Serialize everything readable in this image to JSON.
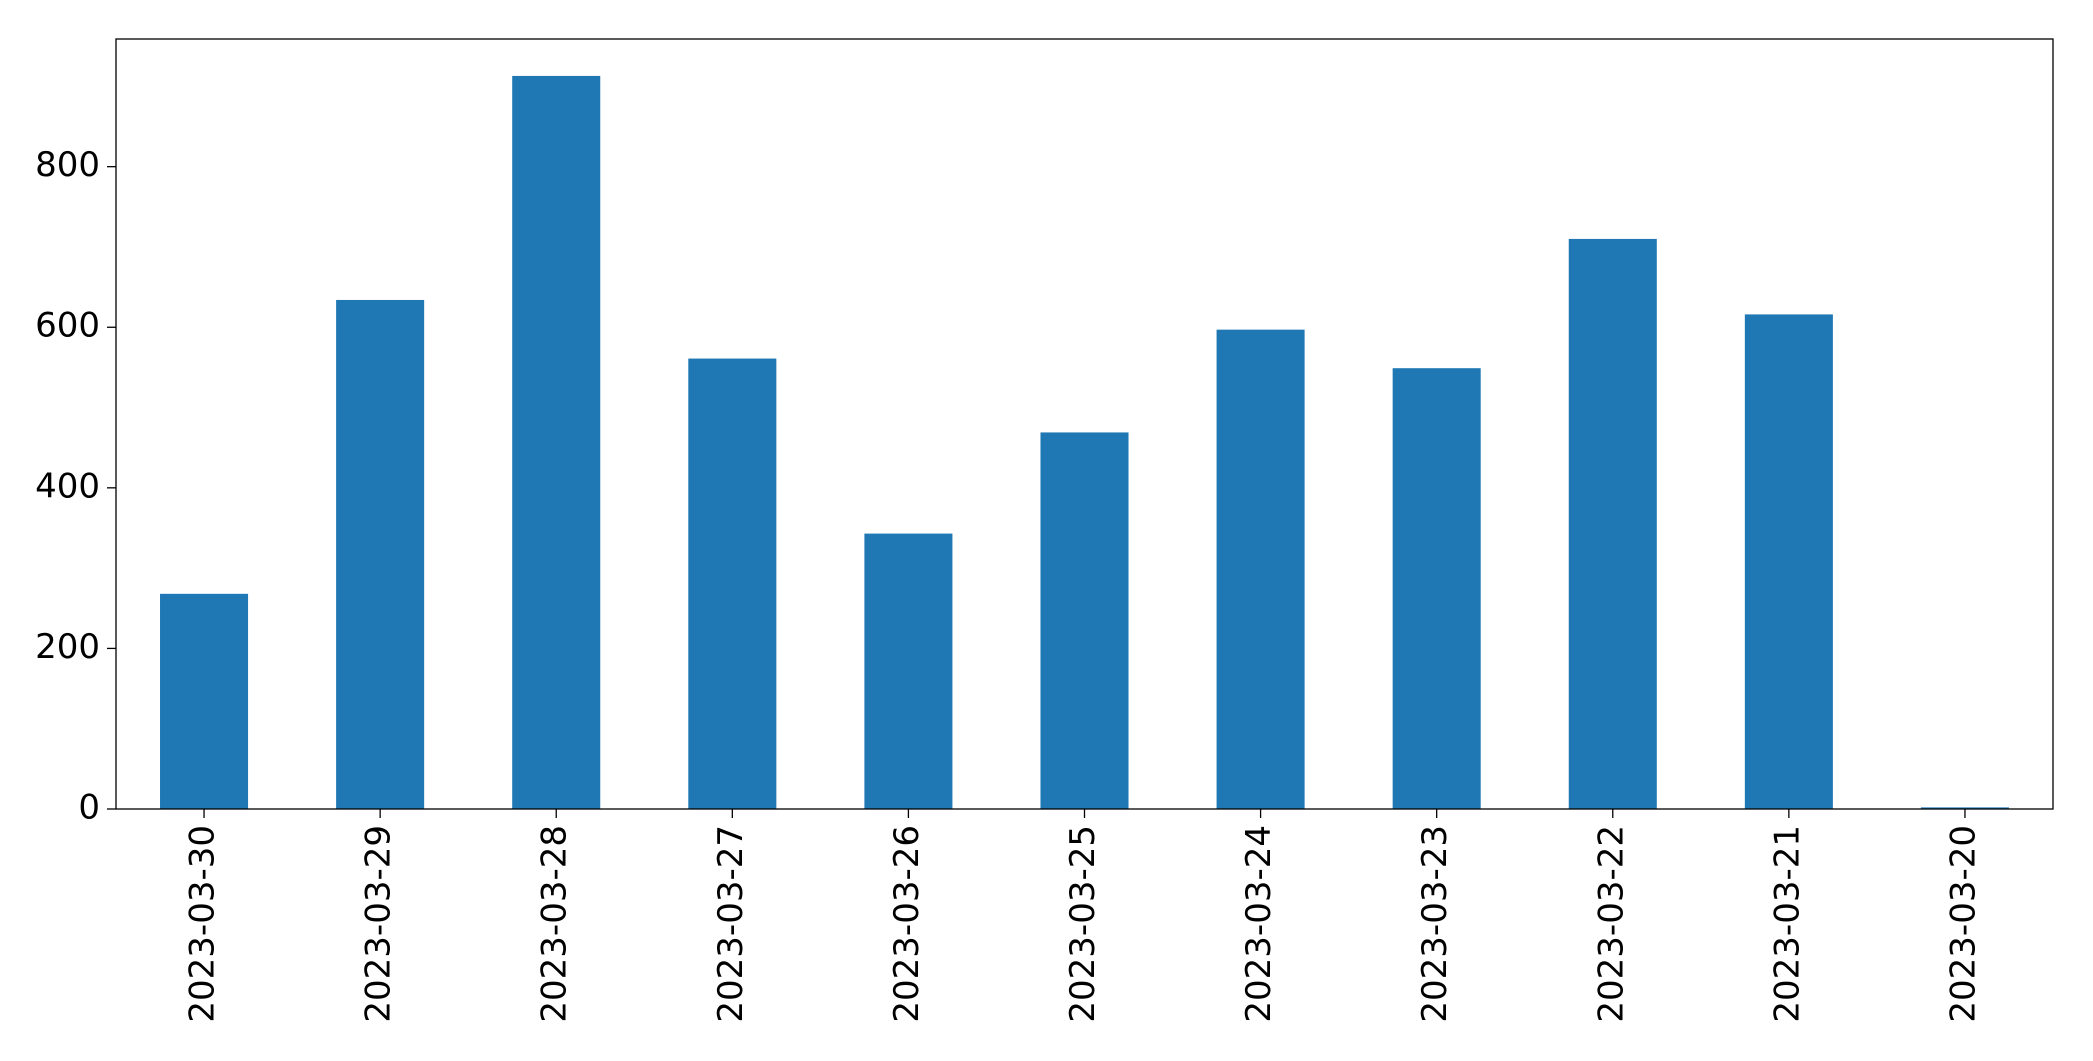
{
  "chart_data": {
    "type": "bar",
    "categories": [
      "2023-03-30",
      "2023-03-29",
      "2023-03-28",
      "2023-03-27",
      "2023-03-26",
      "2023-03-25",
      "2023-03-24",
      "2023-03-23",
      "2023-03-22",
      "2023-03-21",
      "2023-03-20"
    ],
    "values": [
      268,
      634,
      913,
      561,
      343,
      469,
      597,
      549,
      710,
      616,
      2
    ],
    "color": "#1f77b4",
    "ylim": [
      0,
      959
    ],
    "yticks": [
      0,
      200,
      400,
      600,
      800
    ],
    "grid": false
  }
}
